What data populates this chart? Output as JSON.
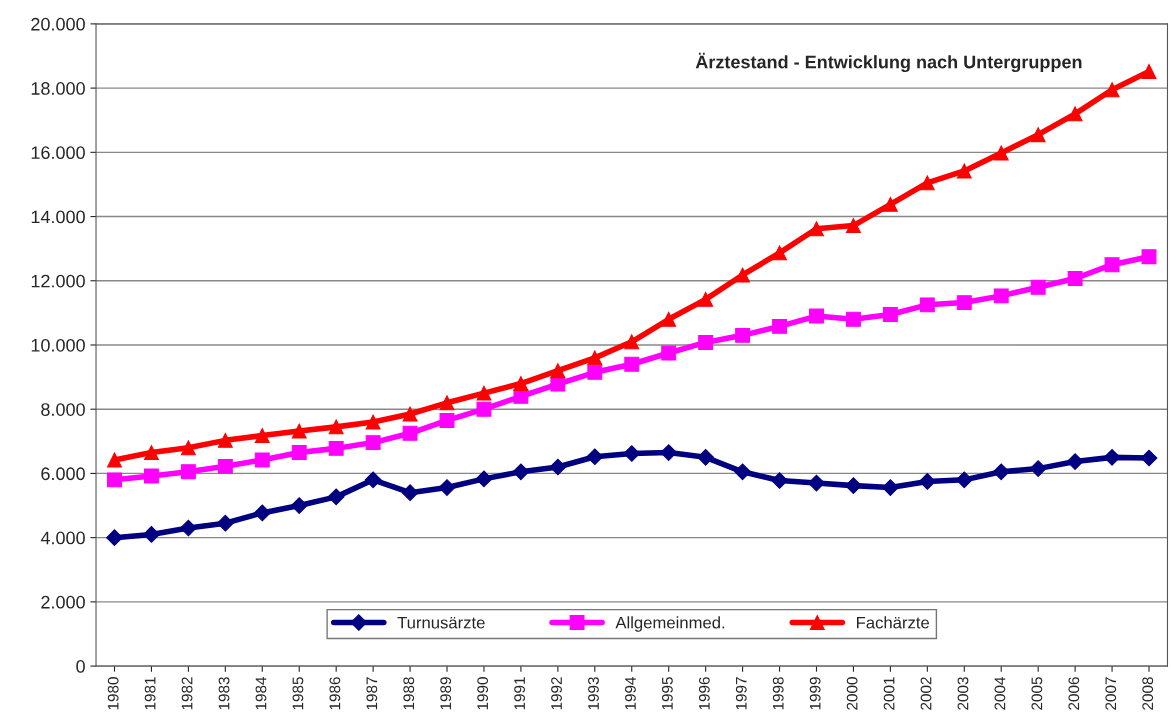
{
  "chart_data": {
    "type": "line",
    "title": "Ärztestand - Entwicklung nach Untergruppen",
    "categories": [
      "1980",
      "1981",
      "1982",
      "1983",
      "1984",
      "1985",
      "1986",
      "1987",
      "1988",
      "1989",
      "1990",
      "1991",
      "1992",
      "1993",
      "1994",
      "1995",
      "1996",
      "1997",
      "1998",
      "1999",
      "2000",
      "2001",
      "2002",
      "2003",
      "2004",
      "2005",
      "2006",
      "2007",
      "2008"
    ],
    "series": [
      {
        "name": "Turnusärzte",
        "color": "#000080",
        "marker": "diamond",
        "values": [
          4000,
          4100,
          4300,
          4450,
          4770,
          5000,
          5270,
          5800,
          5400,
          5560,
          5830,
          6050,
          6200,
          6520,
          6620,
          6650,
          6500,
          6050,
          5780,
          5700,
          5620,
          5560,
          5750,
          5800,
          6050,
          6150,
          6370,
          6500,
          6480
        ]
      },
      {
        "name": "Allgemeinmed.",
        "color": "#ff00ff",
        "marker": "square",
        "values": [
          5800,
          5920,
          6050,
          6220,
          6420,
          6650,
          6780,
          6960,
          7250,
          7650,
          8000,
          8400,
          8780,
          9150,
          9400,
          9750,
          10080,
          10300,
          10580,
          10900,
          10800,
          10950,
          11250,
          11320,
          11530,
          11800,
          12070,
          12500,
          12750
        ]
      },
      {
        "name": "Fachärzte",
        "color": "#ff0000",
        "marker": "triangle",
        "values": [
          6420,
          6650,
          6800,
          7030,
          7180,
          7320,
          7450,
          7600,
          7850,
          8200,
          8500,
          8800,
          9200,
          9600,
          10100,
          10800,
          11420,
          12180,
          12870,
          13620,
          13720,
          14380,
          15050,
          15420,
          15980,
          16550,
          17200,
          17950,
          18520
        ]
      }
    ],
    "ylim": [
      0,
      20000
    ],
    "yticks": [
      {
        "value": 0,
        "label": "0"
      },
      {
        "value": 2000,
        "label": "2.000"
      },
      {
        "value": 4000,
        "label": "4.000"
      },
      {
        "value": 6000,
        "label": "6.000"
      },
      {
        "value": 8000,
        "label": "8.000"
      },
      {
        "value": 10000,
        "label": "10.000"
      },
      {
        "value": 12000,
        "label": "12.000"
      },
      {
        "value": 14000,
        "label": "14.000"
      },
      {
        "value": 16000,
        "label": "16.000"
      },
      {
        "value": 18000,
        "label": "18.000"
      },
      {
        "value": 20000,
        "label": "20.000"
      }
    ],
    "grid": "y",
    "legend": "bottom",
    "line_style": "solid"
  }
}
